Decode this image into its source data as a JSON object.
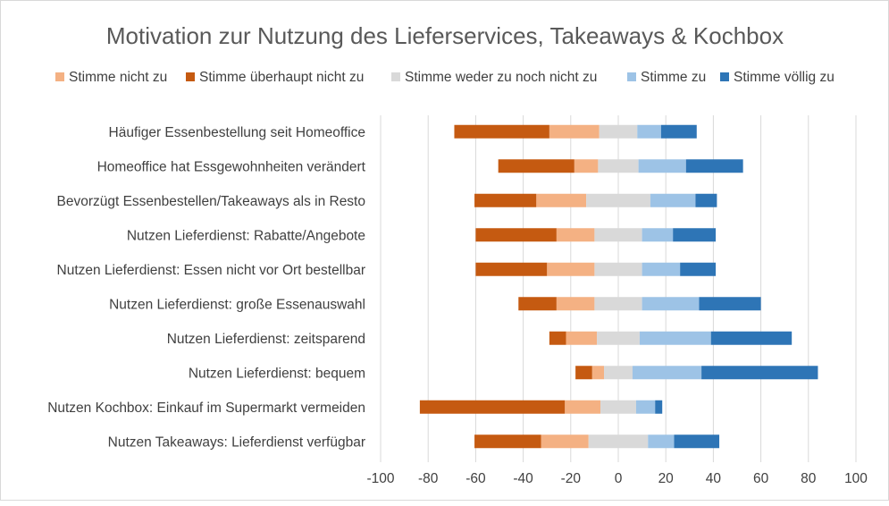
{
  "chart_data": {
    "type": "bar",
    "orientation": "horizontal",
    "stacking": "diverging",
    "title": "Motivation zur Nutzung des Lieferservices, Takeaways & Kochbox",
    "xlabel": "",
    "ylabel": "",
    "xlim": [
      -100,
      100
    ],
    "xticks": [
      "-100",
      "-80",
      "-60",
      "-40",
      "-20",
      "0",
      "20",
      "40",
      "60",
      "80",
      "100"
    ],
    "grid": "vertical",
    "legend_position": "top",
    "categories": [
      "Häufiger Essenbestellung seit Homeoffice",
      "Homeoffice hat Essgewohnheiten verändert",
      "Bevorzügt Essenbestellen/Takeaways als in Resto",
      "Nutzen Lieferdienst: Rabatte/Angebote",
      "Nutzen Lieferdienst: Essen nicht vor Ort bestellbar",
      "Nutzen Lieferdienst: große Essenauswahl",
      "Nutzen Lieferdienst: zeitsparend",
      "Nutzen Lieferdienst: bequem",
      "Nutzen Kochbox: Einkauf im Supermarkt vermeiden",
      "Nutzen Takeaways: Lieferdienst verfügbar"
    ],
    "series": [
      {
        "name": "Stimme nicht zu",
        "color": "#F4B183",
        "side": "negative",
        "values": [
          21,
          10,
          21,
          16,
          20,
          16,
          13,
          5,
          15,
          20
        ]
      },
      {
        "name": "Stimme überhaupt nicht zu",
        "color": "#C55A11",
        "side": "negative",
        "values": [
          40,
          32,
          26,
          34,
          30,
          16,
          7,
          7,
          61,
          28
        ]
      },
      {
        "name": "Stimme weder zu noch nicht zu",
        "color": "#D9D9D9",
        "side": "split",
        "values": [
          16,
          17,
          27,
          20,
          20,
          20,
          18,
          12,
          15,
          25
        ]
      },
      {
        "name": "Stimme zu",
        "color": "#9DC3E6",
        "side": "positive",
        "values": [
          10,
          20,
          19,
          13,
          16,
          24,
          30,
          29,
          8,
          11
        ]
      },
      {
        "name": "Stimme völlig zu",
        "color": "#2E75B6",
        "side": "positive",
        "values": [
          15,
          24,
          9,
          18,
          15,
          26,
          34,
          49,
          3,
          19
        ]
      }
    ]
  }
}
